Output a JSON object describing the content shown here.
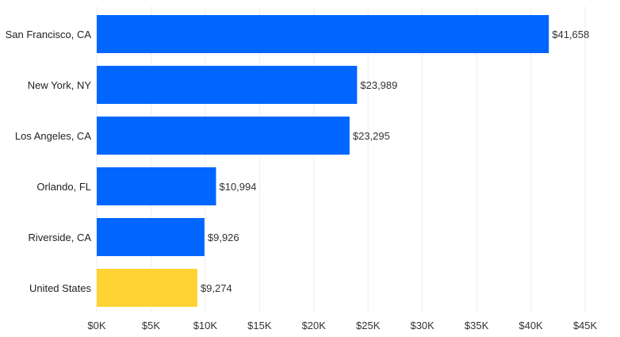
{
  "chart_data": {
    "type": "bar",
    "orientation": "horizontal",
    "title": "",
    "xlabel": "",
    "ylabel": "",
    "categories": [
      "San Francisco, CA",
      "New York, NY",
      "Los Angeles, CA",
      "Orlando, FL",
      "Riverside, CA",
      "United States"
    ],
    "values": [
      41658,
      23989,
      23295,
      10994,
      9926,
      9274
    ],
    "value_labels": [
      "$41,658",
      "$23,989",
      "$23,295",
      "$10,994",
      "$9,926",
      "$9,274"
    ],
    "bar_colors": [
      "#0066ff",
      "#0066ff",
      "#0066ff",
      "#0066ff",
      "#0066ff",
      "#ffd333"
    ],
    "xlim": [
      0,
      45000
    ],
    "x_ticks": [
      0,
      5000,
      10000,
      15000,
      20000,
      25000,
      30000,
      35000,
      40000,
      45000
    ],
    "x_tick_labels": [
      "$0K",
      "$5K",
      "$10K",
      "$15K",
      "$20K",
      "$25K",
      "$30K",
      "$35K",
      "$40K",
      "$45K"
    ],
    "grid": true,
    "legend": "none"
  }
}
